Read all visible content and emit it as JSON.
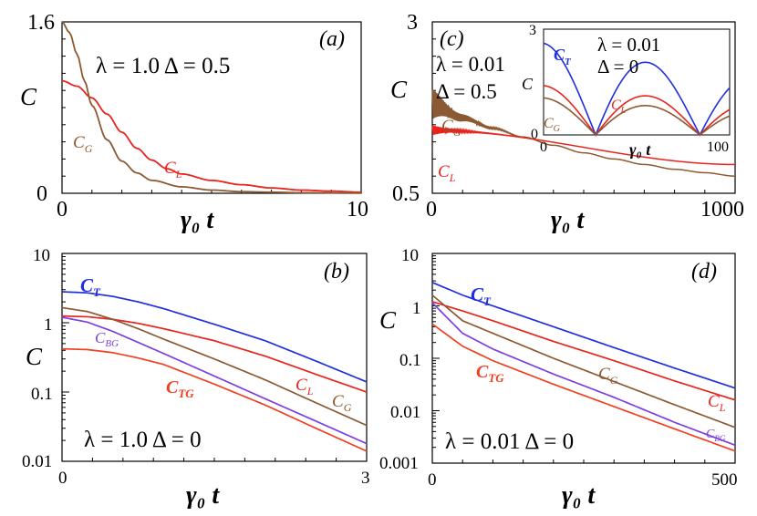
{
  "colors": {
    "C_T": "#1f2fe0",
    "C_L": "#e8241c",
    "C_G": "#8b5a32",
    "C_BG": "#7b3fe0",
    "C_TG": "#f04020"
  },
  "chart_data": [
    {
      "id": "a",
      "type": "line",
      "panel_label": "(a)",
      "params": "λ = 1.0   Δ = 0.5",
      "xlabel": "γ₀ t",
      "ylabel": "C",
      "yscale": "linear",
      "xlim": [
        0,
        10
      ],
      "ylim": [
        0,
        1.6
      ],
      "xticks": [
        "0",
        "10"
      ],
      "yticks": [
        "0",
        "1.6"
      ],
      "series": [
        {
          "name": "C_L",
          "label_main": "C",
          "label_sub": "L",
          "x": [
            0,
            0.5,
            1,
            1.5,
            2,
            2.5,
            3,
            3.5,
            4,
            5,
            6,
            7,
            8,
            9,
            10
          ],
          "y": [
            1.05,
            1.0,
            0.89,
            0.74,
            0.57,
            0.42,
            0.31,
            0.23,
            0.18,
            0.12,
            0.08,
            0.05,
            0.03,
            0.02,
            0.01
          ]
        },
        {
          "name": "C_G",
          "label_main": "C",
          "label_sub": "G",
          "x": [
            0,
            0.25,
            0.5,
            0.75,
            1,
            1.5,
            2,
            2.5,
            3,
            4,
            5,
            6,
            7,
            8,
            10
          ],
          "y": [
            1.6,
            1.5,
            1.3,
            1.05,
            0.82,
            0.5,
            0.3,
            0.19,
            0.12,
            0.06,
            0.03,
            0.015,
            0.01,
            0.005,
            0.002
          ]
        }
      ]
    },
    {
      "id": "c",
      "type": "line",
      "panel_label": "(c)",
      "params_l1": "λ = 0.01",
      "params_l2": "Δ = 0.5",
      "xlabel": "γ₀ t",
      "ylabel": "C",
      "yscale": "linear",
      "xlim": [
        0,
        1000
      ],
      "ylim": [
        0.5,
        3
      ],
      "xticks": [
        "0",
        "1000"
      ],
      "yticks": [
        "0.5",
        "3"
      ],
      "series": [
        {
          "name": "C_G",
          "label_main": "C",
          "label_sub": "G",
          "oscillating": true,
          "x": [
            0,
            100,
            200,
            300,
            400,
            500,
            600,
            700,
            800,
            900,
            1000
          ],
          "y": [
            1.8,
            1.6,
            1.45,
            1.32,
            1.2,
            1.09,
            1.0,
            0.92,
            0.85,
            0.8,
            0.75
          ]
        },
        {
          "name": "C_L",
          "label_main": "C",
          "label_sub": "L",
          "oscillating": true,
          "x": [
            0,
            1000
          ],
          "y": [
            1.42,
            0.92
          ]
        }
      ],
      "inset": {
        "params_l1": "λ = 0.01",
        "params_l2": "Δ = 0",
        "xlabel": "γ₀ t",
        "ylabel": "C",
        "xlim": [
          0,
          100
        ],
        "ylim": [
          0,
          3
        ],
        "xticks": [
          "0",
          "100"
        ],
        "yticks": [
          "0",
          "3"
        ],
        "series": [
          {
            "name": "C_T",
            "label_main": "C",
            "label_sub": "T",
            "amplitude": 2.6,
            "decay": 0.0042
          },
          {
            "name": "C_L",
            "label_main": "C",
            "label_sub": "L",
            "amplitude": 1.4,
            "decay": 0.0042
          },
          {
            "name": "C_G",
            "label_main": "C",
            "label_sub": "G",
            "amplitude": 1.05,
            "decay": 0.0042
          }
        ]
      }
    },
    {
      "id": "b",
      "type": "line",
      "panel_label": "(b)",
      "params": "λ = 1.0   Δ = 0",
      "xlabel": "γ₀ t",
      "ylabel": "C",
      "yscale": "log",
      "xlim": [
        0,
        3
      ],
      "ylim": [
        0.01,
        10
      ],
      "xticks": [
        "0",
        "3"
      ],
      "yticks": [
        "0.01",
        "0.1",
        "1",
        "10"
      ],
      "series": [
        {
          "name": "C_T",
          "label_main": "C",
          "label_sub": "T",
          "x": [
            0,
            0.25,
            0.5,
            0.75,
            1,
            1.5,
            2,
            2.5,
            3
          ],
          "y": [
            2.8,
            2.7,
            2.4,
            2.0,
            1.6,
            0.95,
            0.55,
            0.28,
            0.14
          ]
        },
        {
          "name": "C_L",
          "label_main": "C",
          "label_sub": "L",
          "x": [
            0,
            0.25,
            0.5,
            0.75,
            1,
            1.5,
            2,
            2.5,
            3
          ],
          "y": [
            1.25,
            1.22,
            1.12,
            0.98,
            0.82,
            0.55,
            0.33,
            0.18,
            0.1
          ]
        },
        {
          "name": "C_G",
          "label_main": "C",
          "label_sub": "G",
          "x": [
            0,
            0.25,
            0.5,
            0.75,
            1,
            1.5,
            2,
            2.5,
            3
          ],
          "y": [
            1.65,
            1.45,
            1.12,
            0.82,
            0.58,
            0.3,
            0.15,
            0.07,
            0.033
          ]
        },
        {
          "name": "C_BG",
          "label_main": "C",
          "label_sub": "BG",
          "x": [
            0,
            0.25,
            0.5,
            0.75,
            1,
            1.5,
            2,
            2.5,
            3
          ],
          "y": [
            1.2,
            1.02,
            0.75,
            0.52,
            0.36,
            0.17,
            0.08,
            0.038,
            0.018
          ]
        },
        {
          "name": "C_TG",
          "label_main": "C",
          "label_sub": "TG",
          "x": [
            0,
            0.25,
            0.5,
            0.75,
            1,
            1.5,
            2,
            2.5,
            3
          ],
          "y": [
            0.42,
            0.41,
            0.37,
            0.31,
            0.25,
            0.13,
            0.065,
            0.03,
            0.014
          ]
        }
      ]
    },
    {
      "id": "d",
      "type": "line",
      "panel_label": "(d)",
      "params": "λ = 0.01 Δ = 0",
      "xlabel": "γ₀ t",
      "ylabel": "C",
      "yscale": "log",
      "xlim": [
        0,
        500
      ],
      "ylim": [
        0.001,
        10
      ],
      "xticks": [
        "0",
        "500"
      ],
      "yticks": [
        "0.001",
        "0.01",
        "0.1",
        "1",
        "10"
      ],
      "series": [
        {
          "name": "C_T",
          "label_main": "C",
          "label_sub": "T",
          "x": [
            0,
            50,
            100,
            200,
            300,
            400,
            500
          ],
          "y": [
            2.8,
            1.6,
            1.0,
            0.4,
            0.16,
            0.065,
            0.027
          ]
        },
        {
          "name": "C_L",
          "label_main": "C",
          "label_sub": "L",
          "x": [
            0,
            50,
            100,
            200,
            300,
            400,
            500
          ],
          "y": [
            1.2,
            0.8,
            0.52,
            0.21,
            0.09,
            0.037,
            0.016
          ]
        },
        {
          "name": "C_G",
          "label_main": "C",
          "label_sub": "G",
          "x": [
            0,
            50,
            100,
            200,
            300,
            400,
            500
          ],
          "y": [
            1.6,
            0.52,
            0.3,
            0.1,
            0.036,
            0.013,
            0.0048
          ]
        },
        {
          "name": "C_BG",
          "label_main": "C",
          "label_sub": "BG",
          "x": [
            0,
            50,
            100,
            200,
            300,
            400,
            500
          ],
          "y": [
            1.15,
            0.3,
            0.15,
            0.05,
            0.018,
            0.006,
            0.0022
          ]
        },
        {
          "name": "C_TG",
          "label_main": "C",
          "label_sub": "TG",
          "x": [
            0,
            50,
            100,
            200,
            300,
            400,
            500
          ],
          "y": [
            0.45,
            0.17,
            0.09,
            0.032,
            0.012,
            0.0045,
            0.0017
          ]
        }
      ]
    }
  ]
}
